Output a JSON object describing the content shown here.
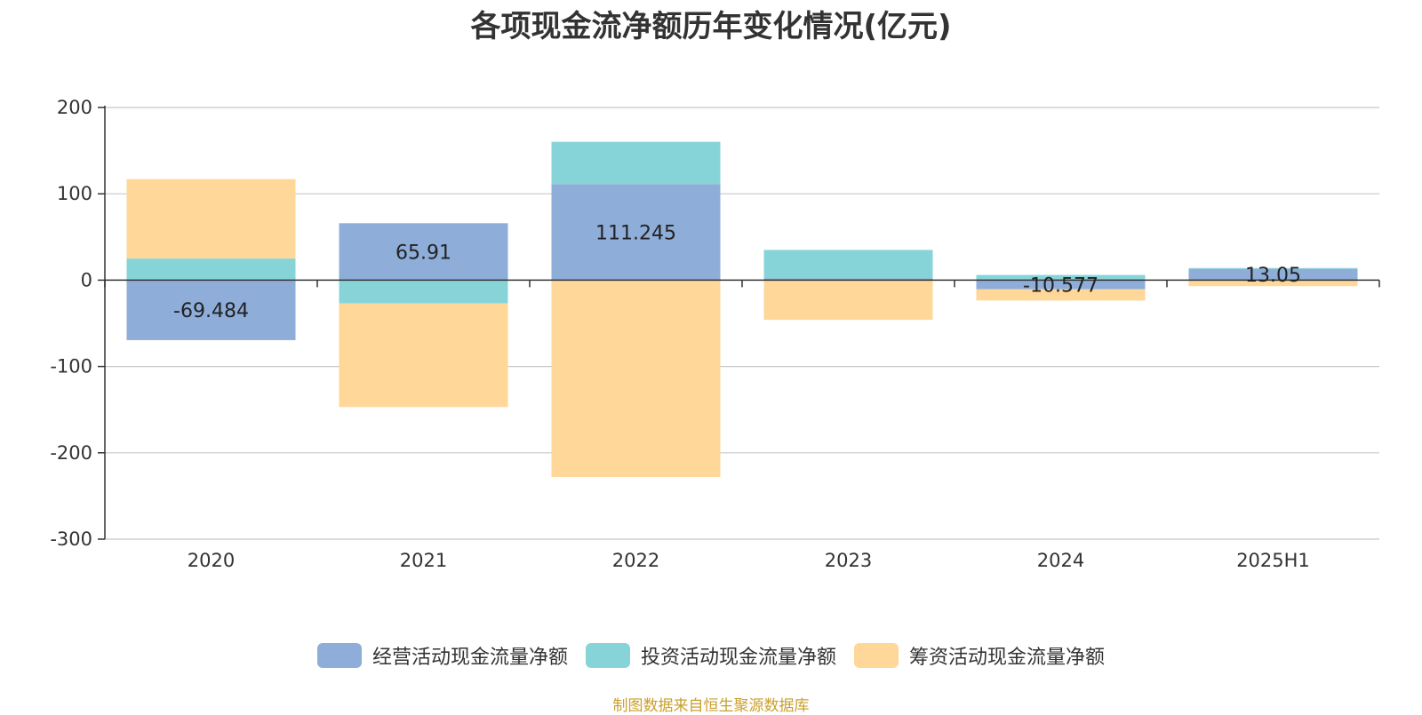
{
  "chart_data": {
    "type": "bar",
    "title": "各项现金流净额历年变化情况(亿元)",
    "categories": [
      "2020",
      "2021",
      "2022",
      "2023",
      "2024",
      "2025H1"
    ],
    "ylim": [
      -300,
      200
    ],
    "yticks": [
      "200",
      "100",
      "0",
      "-100",
      "-200",
      "-300"
    ],
    "grid": true,
    "legend_position": "bottom",
    "series": [
      {
        "name": "经营活动现金流量净额",
        "color": "#8eadd9",
        "values": [
          -69.484,
          65.91,
          111.245,
          2.0,
          -10.577,
          13.05
        ],
        "labels": [
          "-69.484",
          "65.91",
          "111.245",
          "",
          "-10.577",
          "13.05"
        ]
      },
      {
        "name": "投资活动现金流量净额",
        "color": "#87d4d8",
        "values": [
          25,
          -27,
          49,
          33,
          6,
          1
        ]
      },
      {
        "name": "筹资活动现金流量净额",
        "color": "#fed799",
        "values": [
          92,
          -120,
          -228,
          -46,
          -13,
          -7
        ]
      }
    ]
  },
  "source_note": {
    "text": "制图数据来自恒生聚源数据库",
    "color": "#c9a02e"
  }
}
